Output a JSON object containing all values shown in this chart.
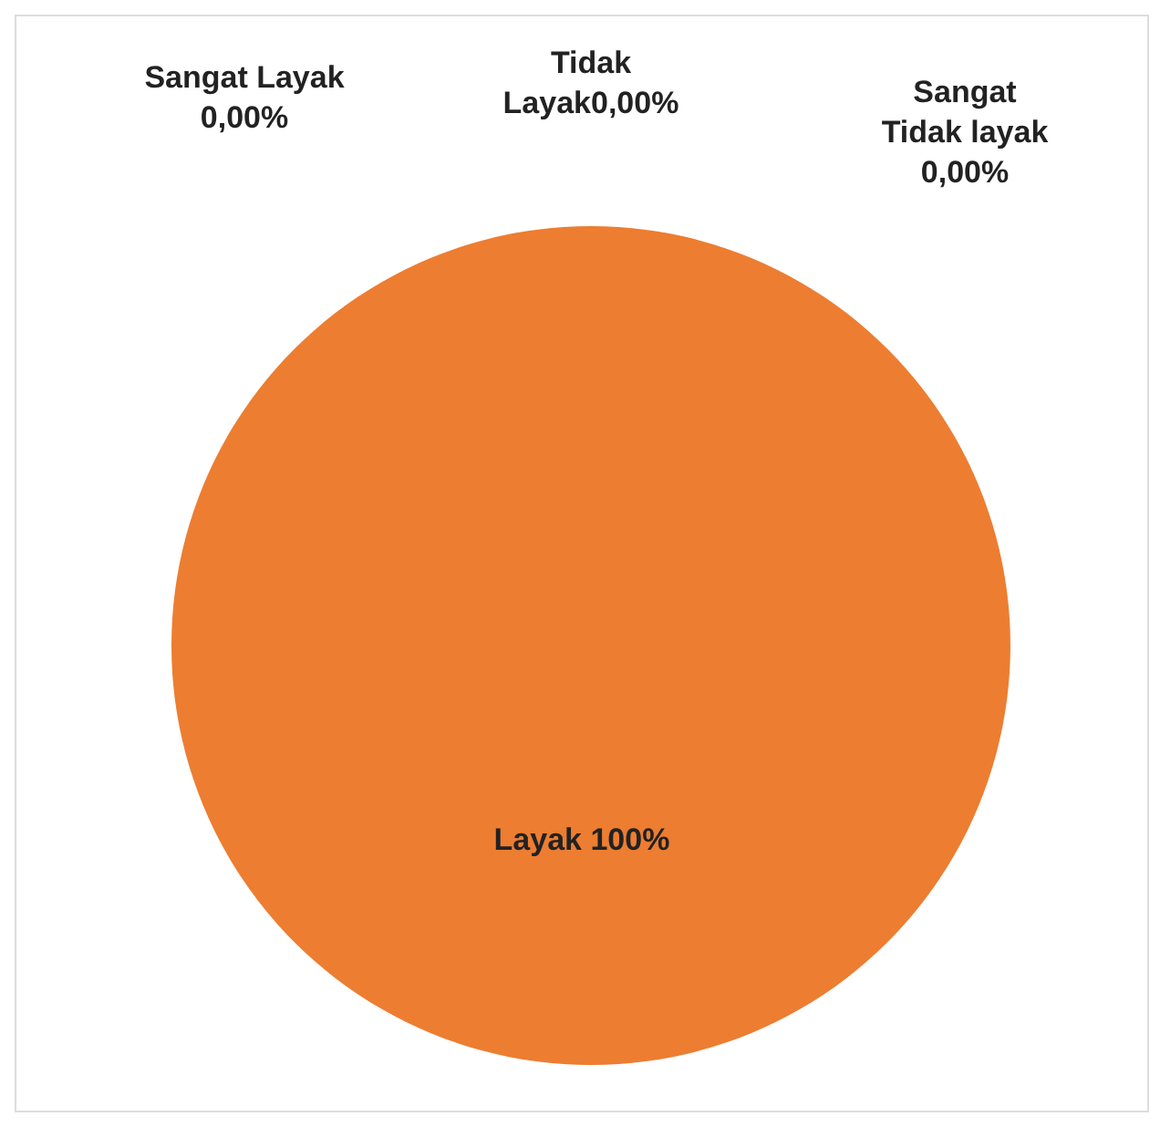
{
  "chart_data": {
    "type": "pie",
    "categories": [
      "Sangat Layak",
      "Layak",
      "Tidak Layak",
      "Sangat Tidak layak"
    ],
    "values": [
      0,
      100,
      0,
      0
    ],
    "colors": [
      "#4472c4",
      "#ed7d31",
      "#a5a5a5",
      "#ffc000"
    ],
    "value_labels": [
      "0,00%",
      "100%",
      "0,00%",
      "0,00%"
    ],
    "legend": false
  }
}
